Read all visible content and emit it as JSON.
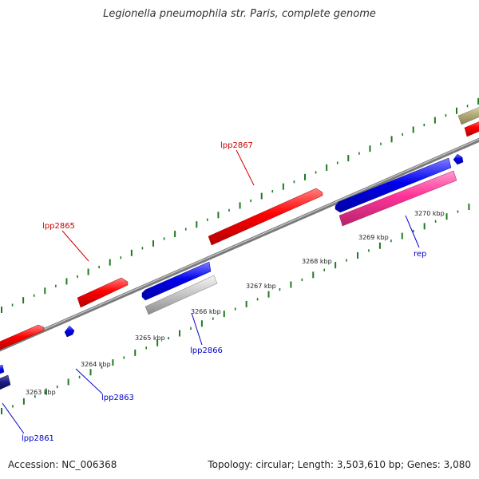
{
  "header": {
    "title": "Legionella pneumophila str. Paris, complete genome"
  },
  "footer": {
    "accession": "Accession: NC_006368",
    "topology": "Topology: circular; Length: 3,503,610 bp; Genes: 3,080"
  },
  "colors": {
    "backbone": "#808080",
    "tick": "#1f7a1f",
    "forward_gene": "#ff0000",
    "reverse_gene": "#0000ee",
    "pseudogene": "#bdbdbd",
    "rep_gene": "#ff3399",
    "dark_gene": "#1a1a80",
    "khaki_gene": "#b5ad7a",
    "forward_label": "#cc0000",
    "reverse_label": "#0000cc"
  },
  "kbp_labels": [
    "3263 kbp",
    "3264 kbp",
    "3265 kbp",
    "3266 kbp",
    "3267 kbp",
    "3268 kbp",
    "3269 kbp",
    "3270 kbp"
  ],
  "forward_gene_labels": [
    "lpp2865",
    "lpp2867"
  ],
  "reverse_gene_labels": [
    "lpp2861",
    "lpp2863",
    "lpp2866",
    "rep"
  ]
}
